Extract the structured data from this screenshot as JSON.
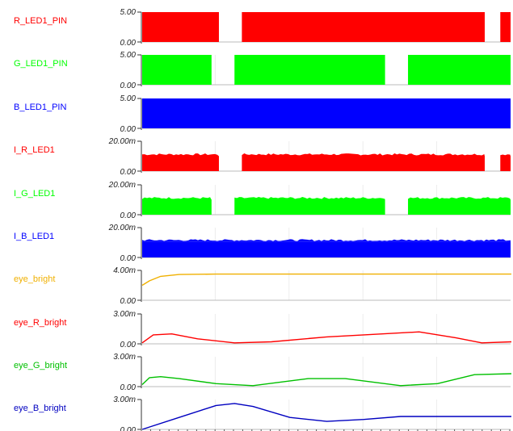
{
  "chart_data": [
    {
      "type": "area",
      "name": "R_LED1_PIN",
      "color": "#ff0000",
      "ymax": "5.00",
      "ymin": "0.00",
      "kind": "digital",
      "on_segments": [
        [
          0,
          0.21
        ],
        [
          0.27,
          0.93
        ],
        [
          0.97,
          1
        ]
      ]
    },
    {
      "type": "area",
      "name": "G_LED1_PIN",
      "color": "#00ff00",
      "ymax": "5.00",
      "ymin": "0.00",
      "kind": "digital",
      "on_segments": [
        [
          0,
          0.19
        ],
        [
          0.25,
          0.66
        ],
        [
          0.72,
          1
        ]
      ]
    },
    {
      "type": "area",
      "name": "B_LED1_PIN",
      "color": "#0000ff",
      "ymax": "5.00",
      "ymin": "0.00",
      "kind": "digital",
      "on_segments": [
        [
          0,
          1
        ]
      ]
    },
    {
      "type": "area",
      "name": "I_R_LED1",
      "color": "#ff0000",
      "ymax": "20.00m",
      "ymin": "0.00",
      "kind": "current",
      "level": 0.5,
      "on_segments": [
        [
          0,
          0.21
        ],
        [
          0.27,
          0.93
        ],
        [
          0.97,
          1
        ]
      ]
    },
    {
      "type": "area",
      "name": "I_G_LED1",
      "color": "#00ff00",
      "ymax": "20.00m",
      "ymin": "0.00",
      "kind": "current",
      "level": 0.5,
      "on_segments": [
        [
          0,
          0.19
        ],
        [
          0.25,
          0.66
        ],
        [
          0.72,
          1
        ]
      ]
    },
    {
      "type": "area",
      "name": "I_B_LED1",
      "color": "#0000ff",
      "ymax": "20.00m",
      "ymin": "0.00",
      "kind": "current",
      "level": 0.52,
      "on_segments": [
        [
          0,
          1
        ]
      ]
    },
    {
      "type": "line",
      "name": "eye_bright",
      "color": "#f0b000",
      "ymax": "4.00m",
      "ymin": "0.00",
      "kind": "analog",
      "x": [
        0,
        0.02,
        0.05,
        0.1,
        0.2,
        0.4,
        0.6,
        0.8,
        1
      ],
      "y": [
        2.0,
        2.6,
        3.2,
        3.45,
        3.5,
        3.5,
        3.5,
        3.5,
        3.5
      ]
    },
    {
      "type": "line",
      "name": "eye_R_bright",
      "color": "#ff0000",
      "ymax": "3.00m",
      "ymin": "0.00",
      "kind": "analog",
      "x": [
        0,
        0.03,
        0.08,
        0.15,
        0.25,
        0.35,
        0.5,
        0.65,
        0.75,
        0.85,
        0.92,
        1
      ],
      "y": [
        0.1,
        0.9,
        1.0,
        0.5,
        0.1,
        0.2,
        0.7,
        1.0,
        1.2,
        0.6,
        0.1,
        0.2
      ]
    },
    {
      "type": "line",
      "name": "eye_G_bright",
      "color": "#00c000",
      "ymax": "3.00m",
      "ymin": "0.00",
      "kind": "analog",
      "x": [
        0,
        0.02,
        0.05,
        0.1,
        0.2,
        0.3,
        0.45,
        0.55,
        0.7,
        0.8,
        0.9,
        1
      ],
      "y": [
        0.2,
        0.9,
        1.0,
        0.8,
        0.3,
        0.1,
        0.8,
        0.8,
        0.1,
        0.3,
        1.2,
        1.3
      ]
    },
    {
      "type": "line",
      "name": "eye_B_bright",
      "color": "#0000c0",
      "ymax": "3.00m",
      "ymin": "0.00",
      "kind": "analog",
      "x": [
        0,
        0.1,
        0.2,
        0.25,
        0.3,
        0.4,
        0.5,
        0.6,
        0.7,
        1
      ],
      "y": [
        0.0,
        1.2,
        2.4,
        2.6,
        2.3,
        1.2,
        0.8,
        1.0,
        1.3,
        1.3
      ]
    }
  ]
}
